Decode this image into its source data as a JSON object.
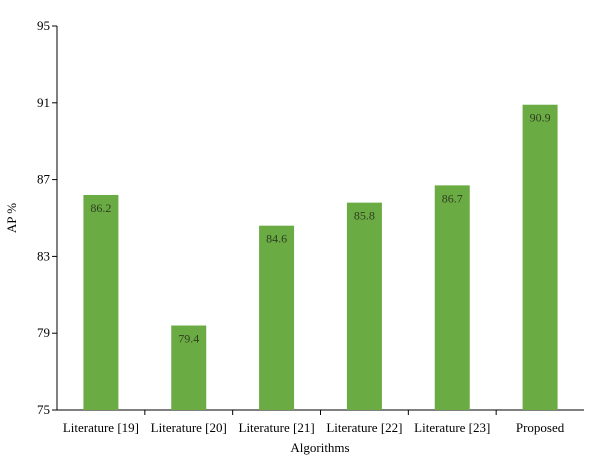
{
  "chart_data": {
    "type": "bar",
    "categories": [
      "Literature [19]",
      "Literature [20]",
      "Literature [21]",
      "Literature [22]",
      "Literature [23]",
      "Proposed"
    ],
    "values": [
      86.2,
      79.4,
      84.6,
      85.8,
      86.7,
      90.9
    ],
    "data_labels": [
      "86.2",
      "79.4",
      "84.6",
      "85.8",
      "86.7",
      "90.9"
    ],
    "xlabel": "Algorithms",
    "ylabel": "AP %",
    "ylim": [
      75,
      95
    ],
    "yticks": [
      75,
      79,
      83,
      87,
      91,
      95
    ],
    "bar_color": "#6aac43",
    "grid": false,
    "legend": "none"
  }
}
